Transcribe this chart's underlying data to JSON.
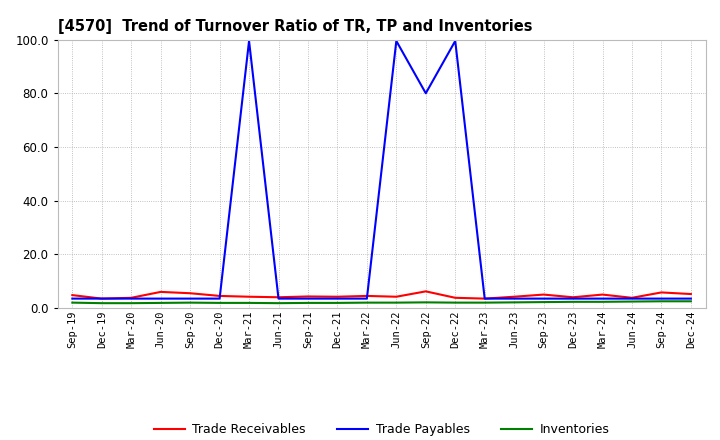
{
  "title": "[4570]  Trend of Turnover Ratio of TR, TP and Inventories",
  "ylim": [
    0.0,
    100.0
  ],
  "yticks": [
    0.0,
    20.0,
    40.0,
    60.0,
    80.0,
    100.0
  ],
  "x_labels": [
    "Sep-19",
    "Dec-19",
    "Mar-20",
    "Jun-20",
    "Sep-20",
    "Dec-20",
    "Mar-21",
    "Jun-21",
    "Sep-21",
    "Dec-21",
    "Mar-22",
    "Jun-22",
    "Sep-22",
    "Dec-22",
    "Mar-23",
    "Jun-23",
    "Sep-23",
    "Dec-23",
    "Mar-24",
    "Jun-24",
    "Sep-24",
    "Dec-24"
  ],
  "trade_receivables": [
    4.8,
    3.5,
    3.8,
    6.0,
    5.5,
    4.5,
    4.2,
    4.0,
    4.3,
    4.2,
    4.5,
    4.2,
    6.2,
    3.8,
    3.5,
    4.2,
    5.0,
    4.0,
    5.0,
    3.8,
    5.8,
    5.2
  ],
  "trade_payables": [
    3.5,
    3.5,
    3.5,
    3.5,
    3.5,
    3.5,
    99.5,
    3.5,
    3.5,
    3.5,
    3.5,
    99.5,
    80.0,
    99.5,
    3.5,
    3.5,
    3.5,
    3.5,
    3.5,
    3.5,
    3.5,
    3.5
  ],
  "inventories": [
    2.0,
    1.8,
    1.8,
    1.9,
    2.0,
    1.9,
    1.9,
    1.8,
    1.9,
    1.9,
    2.0,
    2.0,
    2.1,
    2.0,
    2.0,
    2.1,
    2.2,
    2.3,
    2.3,
    2.4,
    2.5,
    2.5
  ],
  "color_tr": "#ff0000",
  "color_tp": "#0000ff",
  "color_inv": "#008000",
  "background": "#ffffff",
  "grid_color": "#999999",
  "legend_labels": [
    "Trade Receivables",
    "Trade Payables",
    "Inventories"
  ]
}
